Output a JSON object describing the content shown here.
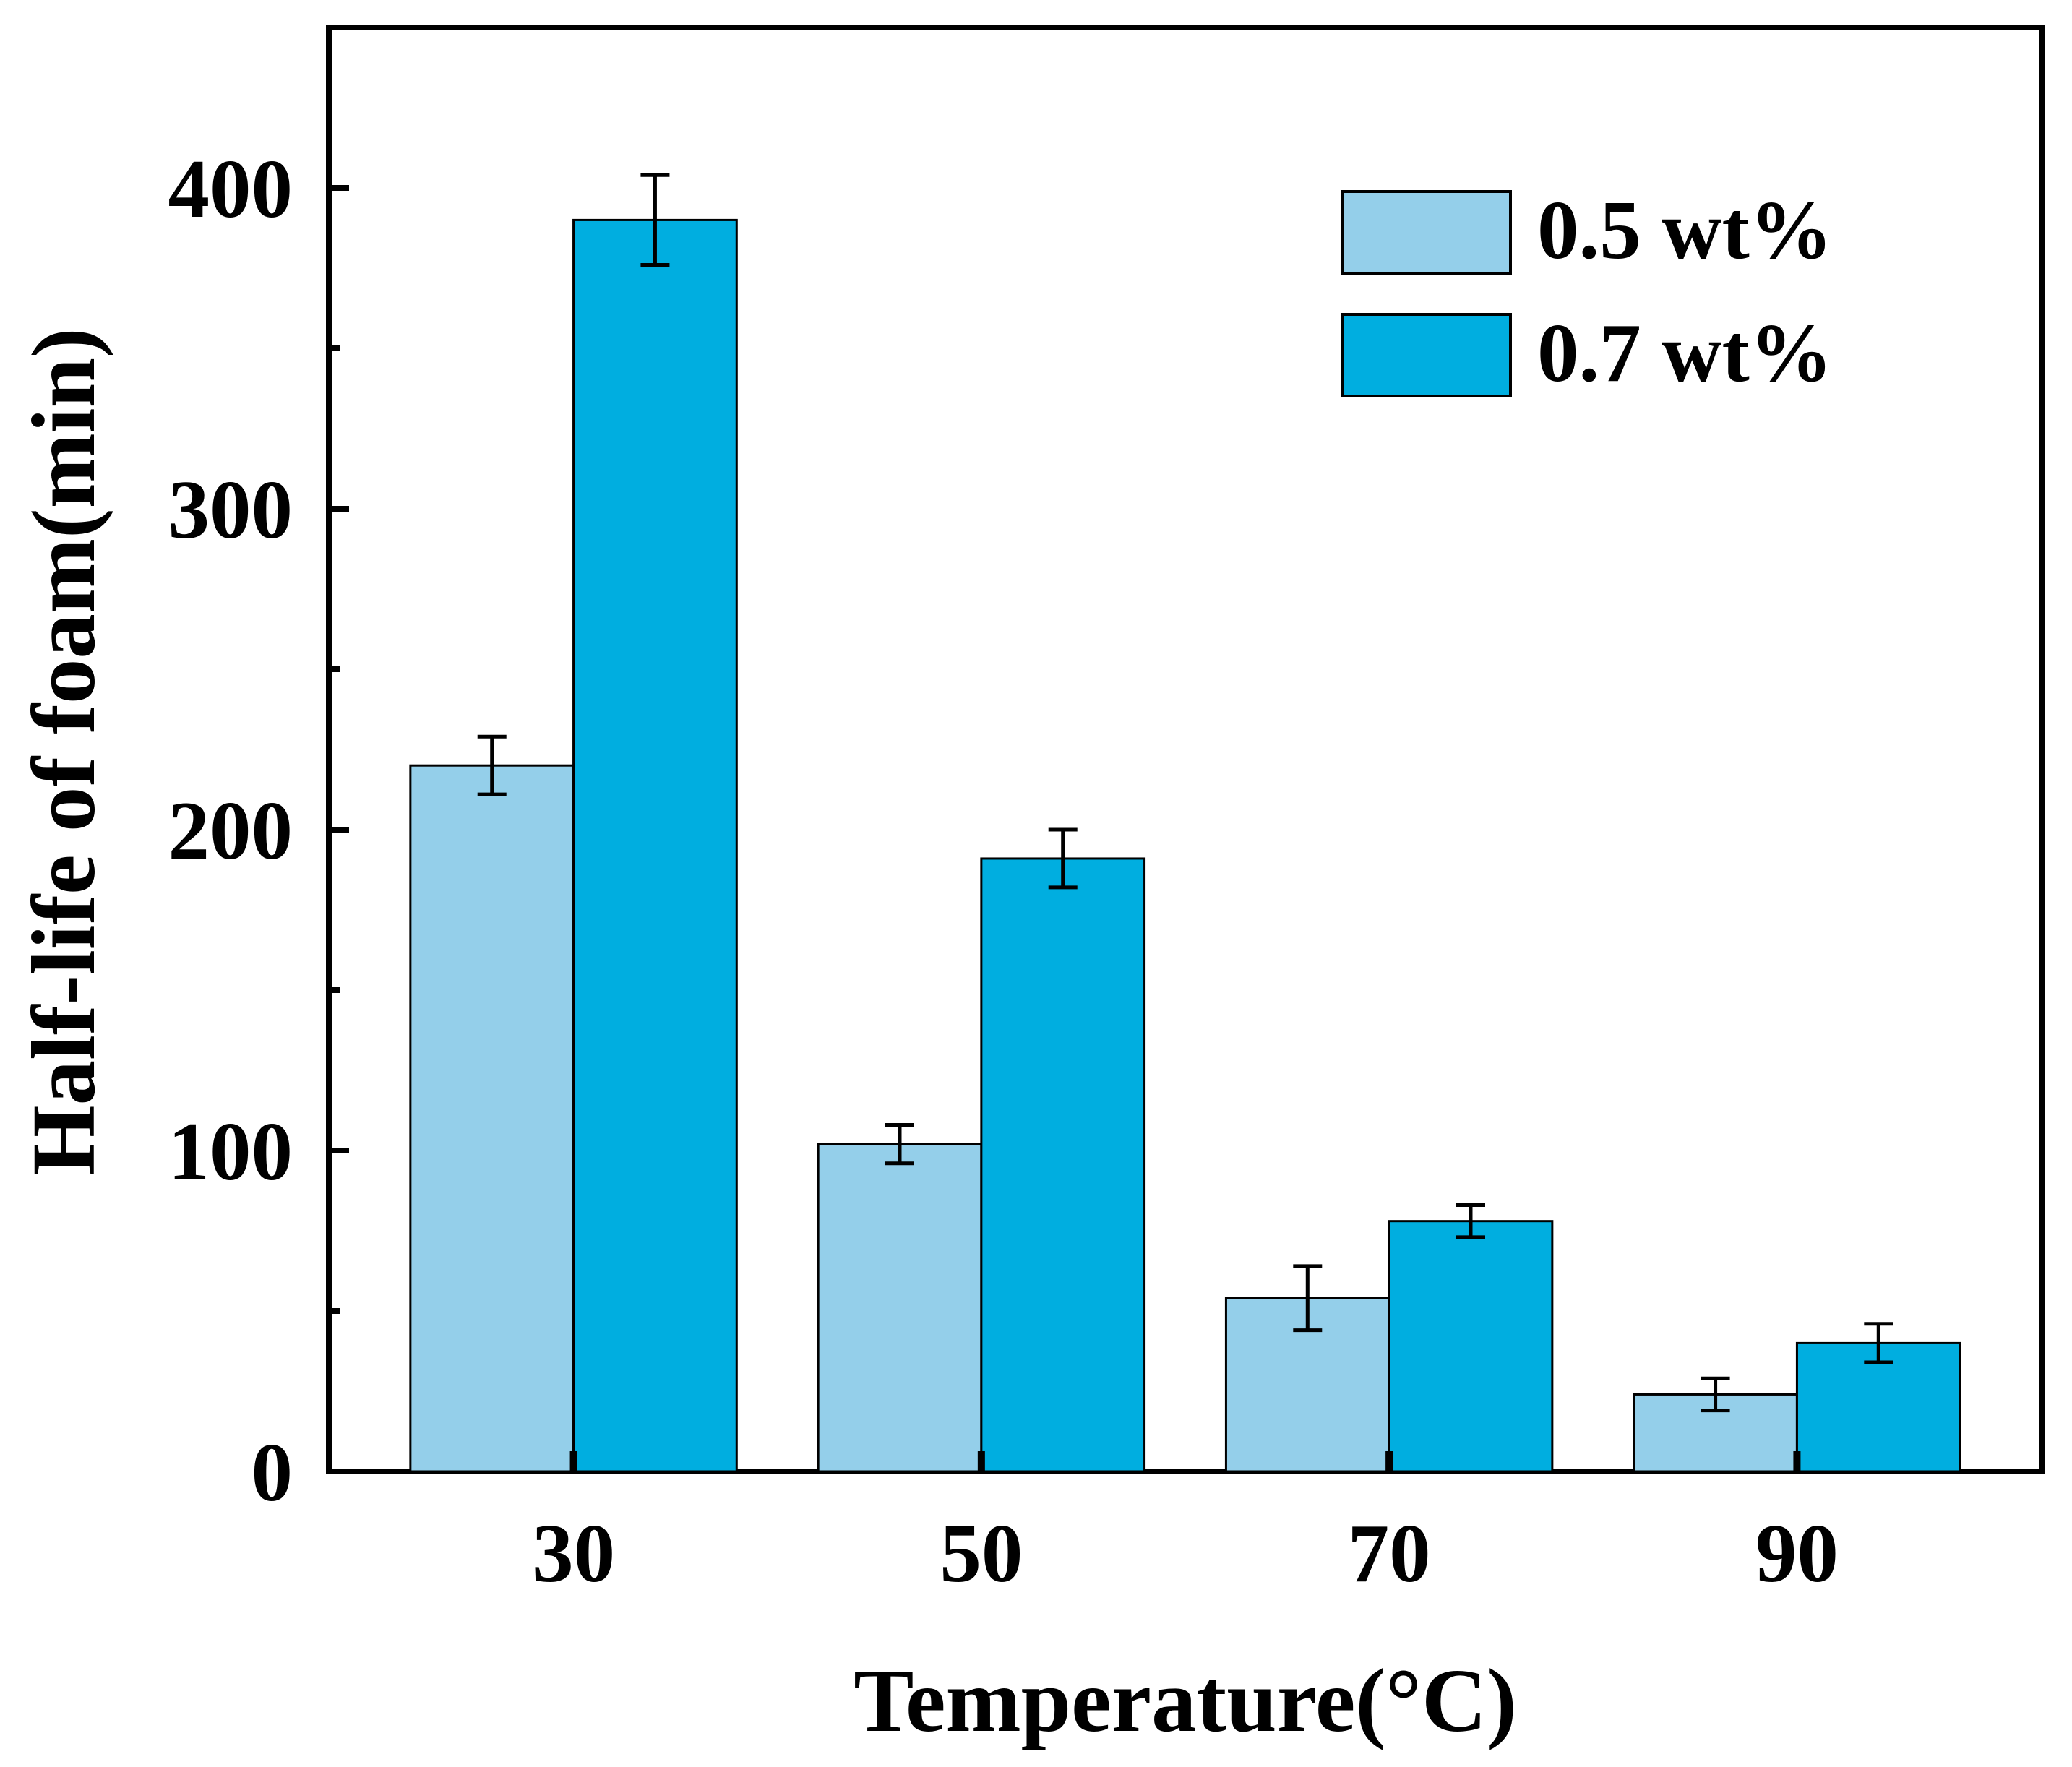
{
  "chart_data": {
    "type": "bar",
    "title": "",
    "xlabel": "Temperature(°C)",
    "ylabel": "Half-life of foam(min)",
    "categories": [
      "30",
      "50",
      "70",
      "90"
    ],
    "ylim": [
      0,
      450
    ],
    "yticks": [
      0,
      100,
      200,
      300,
      400
    ],
    "yticks_minor": [
      50,
      150,
      250,
      350
    ],
    "grid": false,
    "legend_position": "top-right",
    "series": [
      {
        "name": "0.5 wt%",
        "color": "#94cfea",
        "values": [
          220,
          102,
          54,
          24
        ],
        "errors": [
          9,
          6,
          10,
          5
        ]
      },
      {
        "name": "0.7 wt%",
        "color": "#00aee0",
        "values": [
          390,
          191,
          78,
          40
        ],
        "errors": [
          14,
          9,
          5,
          6
        ]
      }
    ]
  }
}
